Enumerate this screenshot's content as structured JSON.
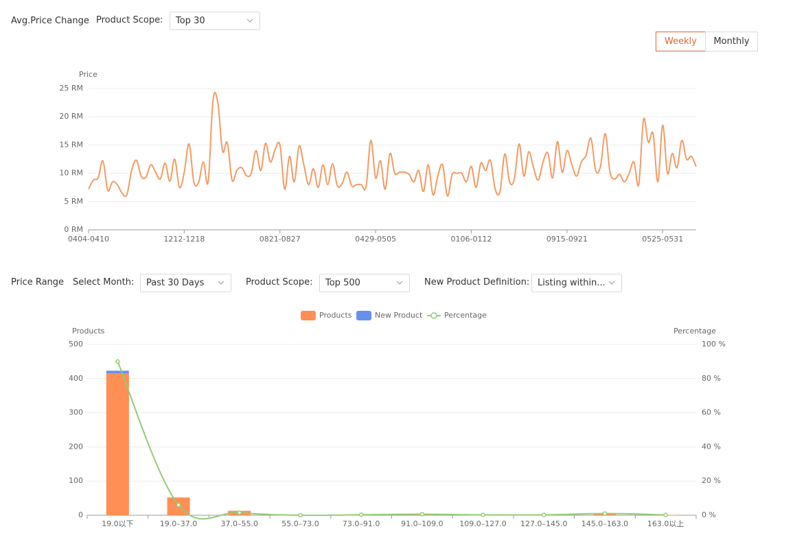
{
  "header": {
    "title": "Avg.Price Change",
    "scope_label": "Product Scope:",
    "scope_value": "Top 30",
    "buttons": [
      "Weekly",
      "Monthly"
    ]
  },
  "filters": {
    "title": "Price Range",
    "month_label": "Select Month:",
    "month_value": "Past 30 Days",
    "scope_label": "Product Scope:",
    "scope_value": "Top 500",
    "definition_label": "New Product Definition:",
    "definition_value": "Listing within..."
  },
  "chart_data": [
    {
      "type": "line",
      "y_label": "Price",
      "color": "#f59a62",
      "grid": true,
      "categories": [
        "0404-0410",
        null,
        null,
        null,
        null,
        null,
        null,
        null,
        null,
        null,
        null,
        null,
        null,
        null,
        null,
        null,
        null,
        null,
        null,
        null,
        "1212-1218",
        null,
        null,
        null,
        null,
        null,
        null,
        null,
        null,
        null,
        null,
        null,
        null,
        null,
        null,
        null,
        null,
        null,
        null,
        null,
        "0821-0827",
        null,
        null,
        null,
        null,
        null,
        null,
        null,
        null,
        null,
        null,
        null,
        null,
        null,
        null,
        null,
        null,
        null,
        null,
        null,
        "0429-0505",
        null,
        null,
        null,
        null,
        null,
        null,
        null,
        null,
        null,
        null,
        null,
        null,
        null,
        null,
        null,
        null,
        null,
        null,
        null,
        "0106-0112",
        null,
        null,
        null,
        null,
        null,
        null,
        null,
        null,
        null,
        null,
        null,
        null,
        null,
        null,
        null,
        null,
        null,
        null,
        null,
        "0915-0921",
        null,
        null,
        null,
        null,
        null,
        null,
        null,
        null,
        null,
        null,
        null,
        null,
        null,
        null,
        null,
        null,
        null,
        null,
        null,
        "0525-0531",
        null,
        null,
        null,
        null,
        null,
        null,
        null
      ],
      "values": [
        7.2,
        8.8,
        9.2,
        12.2,
        7,
        8.5,
        8,
        6.5,
        6.2,
        10.5,
        12.3,
        9.5,
        9.3,
        11.5,
        10.2,
        9,
        11.8,
        8.6,
        12.5,
        7.5,
        10.2,
        15.2,
        8.5,
        8.4,
        12,
        8.5,
        22.8,
        22.6,
        14,
        15.4,
        8.8,
        10.5,
        11,
        9.6,
        10,
        14,
        10.5,
        15.3,
        12,
        14.2,
        15,
        7.2,
        13,
        8.5,
        14.8,
        11.5,
        8,
        10.8,
        7.5,
        11.5,
        8,
        11.7,
        7.8,
        8.2,
        10.2,
        7.8,
        8,
        8,
        7.6,
        15.8,
        9.2,
        12.2,
        7.2,
        13.5,
        10,
        10.2,
        10.2,
        9.8,
        8.5,
        10.5,
        6.8,
        11.5,
        6.2,
        9.5,
        11.5,
        6,
        9.8,
        10,
        10,
        8.5,
        11.2,
        7.5,
        11.8,
        10.5,
        12.3,
        7.2,
        6.8,
        13.4,
        8.5,
        9,
        15.2,
        9.5,
        13.8,
        11,
        8.8,
        12,
        13.6,
        9.2,
        15.6,
        10.2,
        14,
        11.6,
        9.5,
        12,
        13.2,
        16.2,
        10.5,
        11.2,
        17,
        10.2,
        9,
        9.8,
        8.5,
        10,
        12,
        8,
        19.5,
        15.5,
        17,
        8.5,
        18.5,
        10,
        13.5,
        11,
        15.8,
        12.5,
        13,
        11.2
      ],
      "ylim": [
        0,
        25
      ],
      "yticks": [
        {
          "value": 0,
          "label": "0 RM"
        },
        {
          "value": 5,
          "label": "5 RM"
        },
        {
          "value": 10,
          "label": "10 RM"
        },
        {
          "value": 15,
          "label": "15 RM"
        },
        {
          "value": 20,
          "label": "20 RM"
        },
        {
          "value": 25,
          "label": "25 RM"
        }
      ]
    },
    {
      "type": "bar",
      "stacked": true,
      "y_label": "Products",
      "y2_label": "Percentage",
      "grid": true,
      "categories": [
        "19.0以下",
        "19.0–37.0",
        "37.0–55.0",
        "55.0–73.0",
        "73.0–91.0",
        "91.0–109.0",
        "109.0–127.0",
        "127.0–145.0",
        "145.0–163.0",
        "163.0以上"
      ],
      "series": [
        {
          "name": "Products",
          "color": "#ff8f55",
          "values": [
            415,
            52,
            13,
            0,
            1,
            2,
            1,
            1,
            3,
            1
          ]
        },
        {
          "name": "New Product",
          "color": "#6690f0",
          "values": [
            8,
            0,
            0,
            0,
            0,
            0,
            0,
            0,
            0,
            0
          ]
        },
        {
          "name": "Percentage",
          "color": "#91cc75",
          "type": "line",
          "axis": "y2",
          "values": [
            90,
            6,
            1.5,
            0,
            0.3,
            0.6,
            0.2,
            0.2,
            1,
            0.2
          ]
        }
      ],
      "ylim": [
        0,
        500
      ],
      "yticks": [
        0,
        100,
        200,
        300,
        400,
        500
      ],
      "y2lim": [
        0,
        100
      ],
      "y2ticks": [
        {
          "value": 0,
          "label": "0 %"
        },
        {
          "value": 20,
          "label": "20 %"
        },
        {
          "value": 40,
          "label": "40 %"
        },
        {
          "value": 60,
          "label": "60 %"
        },
        {
          "value": 80,
          "label": "80 %"
        },
        {
          "value": 100,
          "label": "100 %"
        }
      ]
    }
  ]
}
